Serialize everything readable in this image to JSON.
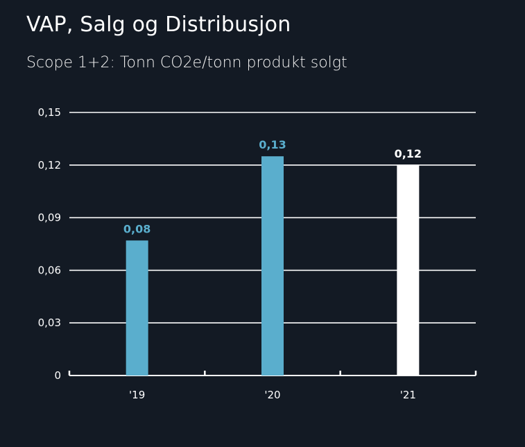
{
  "chart_data": {
    "type": "bar",
    "title": "VAP, Salg og Distribusjon",
    "subtitle": "Scope 1+2: Tonn CO2e/tonn produkt solgt",
    "categories": [
      "'19",
      "'20",
      "'21"
    ],
    "values": [
      0.077,
      0.125,
      0.12
    ],
    "data_labels": [
      "0,08",
      "0,13",
      "0,12"
    ],
    "ylim": [
      0,
      0.15
    ],
    "yticks": [
      0,
      0.03,
      0.06,
      0.09,
      0.12,
      0.15
    ],
    "ytick_labels": [
      "0",
      "0,03",
      "0,06",
      "0,09",
      "0,12",
      "0,15"
    ],
    "grid": true,
    "colors": {
      "background": "#131a24",
      "bars": [
        "#5aaecd",
        "#5aaecd",
        "#ffffff"
      ],
      "labels": [
        "#5aaecd",
        "#5aaecd",
        "#ffffff"
      ],
      "grid": "#ffffff"
    }
  }
}
